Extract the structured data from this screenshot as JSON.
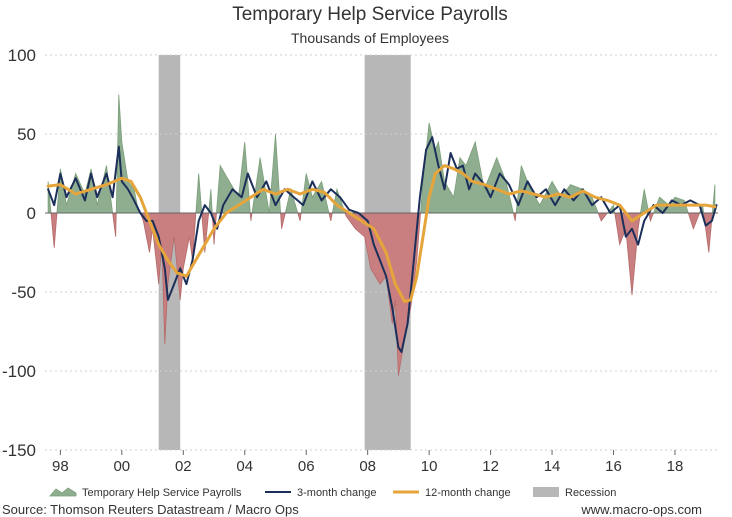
{
  "chart_data": {
    "type": "line",
    "title": "Temporary Help Service Payrolls",
    "subtitle": "Thousands of Employees",
    "xlabel": "",
    "ylabel": "",
    "x_range": [
      1997.5,
      2019.4
    ],
    "ylim": [
      -150,
      100
    ],
    "y_ticks": [
      100,
      50,
      0,
      -50,
      -100,
      -150
    ],
    "x_ticks": [
      {
        "year": 1998,
        "label": "98"
      },
      {
        "year": 2000,
        "label": "00"
      },
      {
        "year": 2002,
        "label": "02"
      },
      {
        "year": 2004,
        "label": "04"
      },
      {
        "year": 2006,
        "label": "06"
      },
      {
        "year": 2008,
        "label": "08"
      },
      {
        "year": 2010,
        "label": "10"
      },
      {
        "year": 2012,
        "label": "12"
      },
      {
        "year": 2014,
        "label": "14"
      },
      {
        "year": 2016,
        "label": "16"
      },
      {
        "year": 2018,
        "label": "18"
      }
    ],
    "grid": true,
    "legend_position": "bottom",
    "recessions": [
      {
        "start": 2001.2,
        "end": 2001.9
      },
      {
        "start": 2007.9,
        "end": 2009.4
      }
    ],
    "series": [
      {
        "name": "Temporary Help Service Payrolls",
        "kind": "area",
        "x": [
          1997.6,
          1997.8,
          1998.0,
          1998.2,
          1998.5,
          1998.8,
          1999.0,
          1999.2,
          1999.5,
          1999.8,
          1999.9,
          2000.0,
          2000.2,
          2000.4,
          2000.5,
          2000.7,
          2000.9,
          2001.0,
          2001.2,
          2001.3,
          2001.4,
          2001.5,
          2001.7,
          2001.9,
          2002.0,
          2002.2,
          2002.3,
          2002.5,
          2002.7,
          2002.9,
          2003.0,
          2003.2,
          2003.5,
          2003.8,
          2004.0,
          2004.2,
          2004.5,
          2004.8,
          2005.0,
          2005.2,
          2005.5,
          2005.8,
          2006.0,
          2006.2,
          2006.5,
          2006.8,
          2007.0,
          2007.3,
          2007.6,
          2007.9,
          2008.1,
          2008.4,
          2008.6,
          2008.8,
          2008.9,
          2009.0,
          2009.2,
          2009.4,
          2009.6,
          2009.8,
          2010.0,
          2010.2,
          2010.3,
          2010.5,
          2010.8,
          2011.0,
          2011.2,
          2011.5,
          2011.8,
          2012.0,
          2012.2,
          2012.5,
          2012.8,
          2013.0,
          2013.3,
          2013.6,
          2014.0,
          2014.3,
          2014.6,
          2015.0,
          2015.3,
          2015.6,
          2016.0,
          2016.2,
          2016.4,
          2016.6,
          2016.8,
          2017.0,
          2017.2,
          2017.5,
          2017.8,
          2018.0,
          2018.3,
          2018.6,
          2018.9,
          2019.1,
          2019.3
        ],
        "values": [
          20,
          -22,
          28,
          5,
          25,
          12,
          28,
          5,
          30,
          -15,
          75,
          45,
          20,
          15,
          5,
          -5,
          -25,
          -10,
          -45,
          -20,
          -83,
          -45,
          -15,
          -55,
          -35,
          -15,
          -30,
          25,
          -25,
          15,
          -20,
          30,
          20,
          10,
          45,
          -5,
          35,
          0,
          50,
          -10,
          15,
          -5,
          25,
          10,
          20,
          -5,
          15,
          -2,
          -10,
          -15,
          -35,
          -45,
          -40,
          -70,
          -55,
          -103,
          -80,
          -60,
          -30,
          20,
          57,
          40,
          45,
          20,
          10,
          35,
          30,
          45,
          15,
          25,
          35,
          20,
          -5,
          30,
          15,
          5,
          20,
          10,
          18,
          15,
          10,
          -5,
          5,
          -20,
          -10,
          -52,
          -10,
          15,
          -5,
          10,
          5,
          10,
          8,
          -10,
          5,
          -25,
          18
        ]
      },
      {
        "name": "3-month change",
        "kind": "line",
        "x": [
          1997.6,
          1997.8,
          1998.0,
          1998.2,
          1998.5,
          1998.8,
          1999.0,
          1999.2,
          1999.5,
          1999.7,
          1999.9,
          2000.0,
          2000.2,
          2000.4,
          2000.6,
          2000.8,
          2001.0,
          2001.2,
          2001.4,
          2001.5,
          2001.7,
          2001.9,
          2002.1,
          2002.3,
          2002.5,
          2002.7,
          2002.9,
          2003.1,
          2003.3,
          2003.6,
          2003.9,
          2004.1,
          2004.4,
          2004.7,
          2005.0,
          2005.3,
          2005.6,
          2005.9,
          2006.2,
          2006.5,
          2006.8,
          2007.1,
          2007.4,
          2007.7,
          2008.0,
          2008.2,
          2008.4,
          2008.6,
          2008.8,
          2009.0,
          2009.1,
          2009.3,
          2009.5,
          2009.7,
          2009.9,
          2010.1,
          2010.3,
          2010.5,
          2010.7,
          2010.9,
          2011.1,
          2011.3,
          2011.5,
          2011.8,
          2012.0,
          2012.3,
          2012.6,
          2012.9,
          2013.2,
          2013.5,
          2013.8,
          2014.1,
          2014.4,
          2014.7,
          2015.0,
          2015.3,
          2015.6,
          2015.9,
          2016.2,
          2016.4,
          2016.6,
          2016.8,
          2017.0,
          2017.3,
          2017.6,
          2017.9,
          2018.2,
          2018.5,
          2018.8,
          2019.0,
          2019.2,
          2019.35
        ],
        "values": [
          15,
          5,
          25,
          10,
          22,
          8,
          25,
          10,
          25,
          10,
          42,
          20,
          15,
          8,
          0,
          -5,
          -5,
          -15,
          -35,
          -55,
          -45,
          -35,
          -45,
          -30,
          -5,
          5,
          0,
          -10,
          5,
          15,
          10,
          25,
          10,
          20,
          5,
          15,
          10,
          5,
          20,
          8,
          15,
          10,
          2,
          0,
          -5,
          -20,
          -30,
          -40,
          -60,
          -85,
          -88,
          -70,
          -30,
          10,
          40,
          48,
          30,
          15,
          38,
          28,
          30,
          15,
          25,
          18,
          10,
          25,
          18,
          5,
          20,
          10,
          15,
          5,
          15,
          8,
          15,
          5,
          10,
          0,
          5,
          -15,
          -10,
          -20,
          -5,
          5,
          0,
          8,
          5,
          8,
          5,
          -8,
          -5,
          5
        ]
      },
      {
        "name": "12-month change",
        "kind": "line",
        "x": [
          1997.6,
          1998.0,
          1998.5,
          1999.0,
          1999.5,
          2000.0,
          2000.3,
          2000.6,
          2000.9,
          2001.2,
          2001.5,
          2001.8,
          2002.1,
          2002.4,
          2002.7,
          2003.0,
          2003.4,
          2003.8,
          2004.2,
          2004.6,
          2005.0,
          2005.4,
          2005.8,
          2006.2,
          2006.6,
          2007.0,
          2007.4,
          2007.8,
          2008.2,
          2008.6,
          2008.9,
          2009.2,
          2009.4,
          2009.6,
          2009.8,
          2010.0,
          2010.2,
          2010.5,
          2010.8,
          2011.1,
          2011.4,
          2011.8,
          2012.2,
          2012.6,
          2013.0,
          2013.4,
          2013.8,
          2014.2,
          2014.6,
          2015.0,
          2015.4,
          2015.8,
          2016.2,
          2016.6,
          2017.0,
          2017.4,
          2017.8,
          2018.2,
          2018.6,
          2019.0,
          2019.3
        ],
        "values": [
          17,
          18,
          12,
          15,
          18,
          22,
          20,
          10,
          -5,
          -20,
          -30,
          -38,
          -40,
          -30,
          -20,
          -10,
          0,
          5,
          10,
          15,
          12,
          15,
          12,
          15,
          13,
          5,
          0,
          -5,
          -10,
          -25,
          -45,
          -56,
          -55,
          -40,
          -15,
          10,
          25,
          30,
          28,
          25,
          20,
          18,
          15,
          12,
          14,
          12,
          10,
          12,
          10,
          14,
          10,
          8,
          5,
          -5,
          0,
          5,
          5,
          5,
          5,
          5,
          4
        ]
      }
    ]
  },
  "legend": {
    "items": [
      {
        "label": "Temporary Help Service Payrolls",
        "kind": "area"
      },
      {
        "label": "3-month change",
        "kind": "line3"
      },
      {
        "label": "12-month change",
        "kind": "line12"
      },
      {
        "label": "Recession",
        "kind": "recession"
      }
    ]
  },
  "footer": {
    "source": "Source: Thomson Reuters Datastream / Macro Ops",
    "website": "www.macro-ops.com"
  },
  "colors": {
    "positive_fill": "#8fae8f",
    "positive_stroke": "#7a9e7a",
    "negative_fill": "#c97f7f",
    "negative_stroke": "#b56a6a",
    "three_month": "#1b2f5a",
    "twelve_month": "#e6a53a",
    "recession": "#b7b7b7",
    "grid": "#cfcfcf",
    "zero_line": "#666666"
  }
}
